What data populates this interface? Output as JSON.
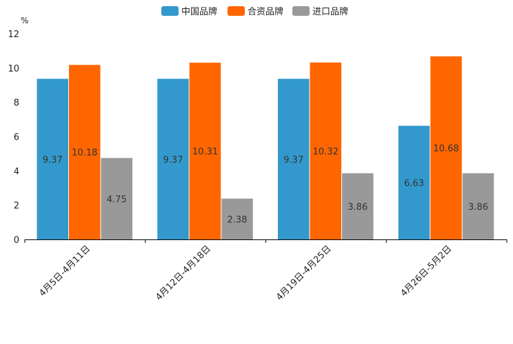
{
  "chart_data": {
    "type": "bar",
    "title": "",
    "xlabel": "",
    "ylabel": "%",
    "ylim": [
      0,
      12
    ],
    "yticks": [
      0,
      2,
      4,
      6,
      8,
      10,
      12
    ],
    "grid": false,
    "legend_position": "top-center",
    "categories": [
      "4月5日-4月11日",
      "4月12日-4月18日",
      "4月19日-4月25日",
      "4月26日-5月2日"
    ],
    "series": [
      {
        "name": "中国品牌",
        "color": "#3399cc",
        "values": [
          9.37,
          9.37,
          9.37,
          6.63
        ]
      },
      {
        "name": "合资品牌",
        "color": "#ff6600",
        "values": [
          10.18,
          10.31,
          10.32,
          10.68
        ]
      },
      {
        "name": "进口品牌",
        "color": "#999999",
        "values": [
          4.75,
          2.38,
          3.86,
          3.86
        ]
      }
    ]
  }
}
